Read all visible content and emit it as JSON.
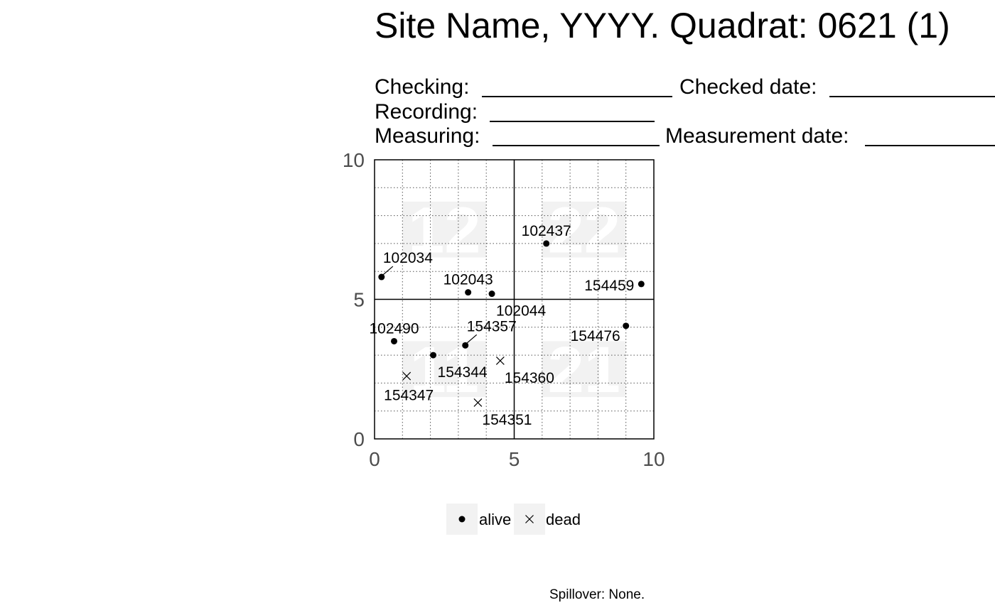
{
  "header": {
    "title": "Site Name, YYYY. Quadrat: 0621 (1)",
    "checking_label": "Checking:",
    "checked_date_label": "Checked date:",
    "recording_label": "Recording:",
    "measuring_label": "Measuring:",
    "measurement_date_label": "Measurement date:"
  },
  "footer": {
    "spillover": "Spillover: None."
  },
  "colors": {
    "subquadrat_fill": "#f2f2f2",
    "tick_text": "#4d4d4d",
    "grid": "#555555"
  },
  "chart_data": {
    "type": "scatter",
    "xlim": [
      0,
      10
    ],
    "ylim": [
      0,
      10
    ],
    "x_ticks": [
      0,
      5,
      10
    ],
    "y_ticks": [
      0,
      5,
      10
    ],
    "minor_grid_step": 1,
    "minor_grid_style": "dotted",
    "major_lines_at": [
      5
    ],
    "subquadrats": [
      {
        "label": "12",
        "x": 2.5,
        "y": 7.5
      },
      {
        "label": "22",
        "x": 7.5,
        "y": 7.5
      },
      {
        "label": "11",
        "x": 2.5,
        "y": 2.5
      },
      {
        "label": "21",
        "x": 7.5,
        "y": 2.5
      }
    ],
    "points": [
      {
        "tag": "102034",
        "x": 0.25,
        "y": 5.8,
        "status": "alive",
        "label_pos": "above-right"
      },
      {
        "tag": "102437",
        "x": 6.15,
        "y": 7.0,
        "status": "alive",
        "label_pos": "above"
      },
      {
        "tag": "102043",
        "x": 3.35,
        "y": 5.25,
        "status": "alive",
        "label_pos": "above"
      },
      {
        "tag": "102044",
        "x": 4.2,
        "y": 5.2,
        "status": "alive",
        "label_pos": "below-right"
      },
      {
        "tag": "154459",
        "x": 9.55,
        "y": 5.55,
        "status": "alive",
        "label_pos": "left"
      },
      {
        "tag": "154476",
        "x": 9.0,
        "y": 4.05,
        "status": "alive",
        "label_pos": "below-left"
      },
      {
        "tag": "102490",
        "x": 0.7,
        "y": 3.5,
        "status": "alive",
        "label_pos": "above"
      },
      {
        "tag": "154357",
        "x": 3.25,
        "y": 3.35,
        "status": "alive",
        "label_pos": "above-right"
      },
      {
        "tag": "154344",
        "x": 2.1,
        "y": 3.0,
        "status": "alive",
        "label_pos": "below-right"
      },
      {
        "tag": "154360",
        "x": 4.5,
        "y": 2.8,
        "status": "dead",
        "label_pos": "below-right"
      },
      {
        "tag": "154347",
        "x": 1.15,
        "y": 2.25,
        "status": "dead",
        "label_pos": "below"
      },
      {
        "tag": "154351",
        "x": 3.7,
        "y": 1.3,
        "status": "dead",
        "label_pos": "below-right"
      }
    ],
    "legend": {
      "placement": "bottom",
      "entries": [
        {
          "name": "alive",
          "marker": "dot"
        },
        {
          "name": "dead",
          "marker": "x"
        }
      ]
    }
  }
}
